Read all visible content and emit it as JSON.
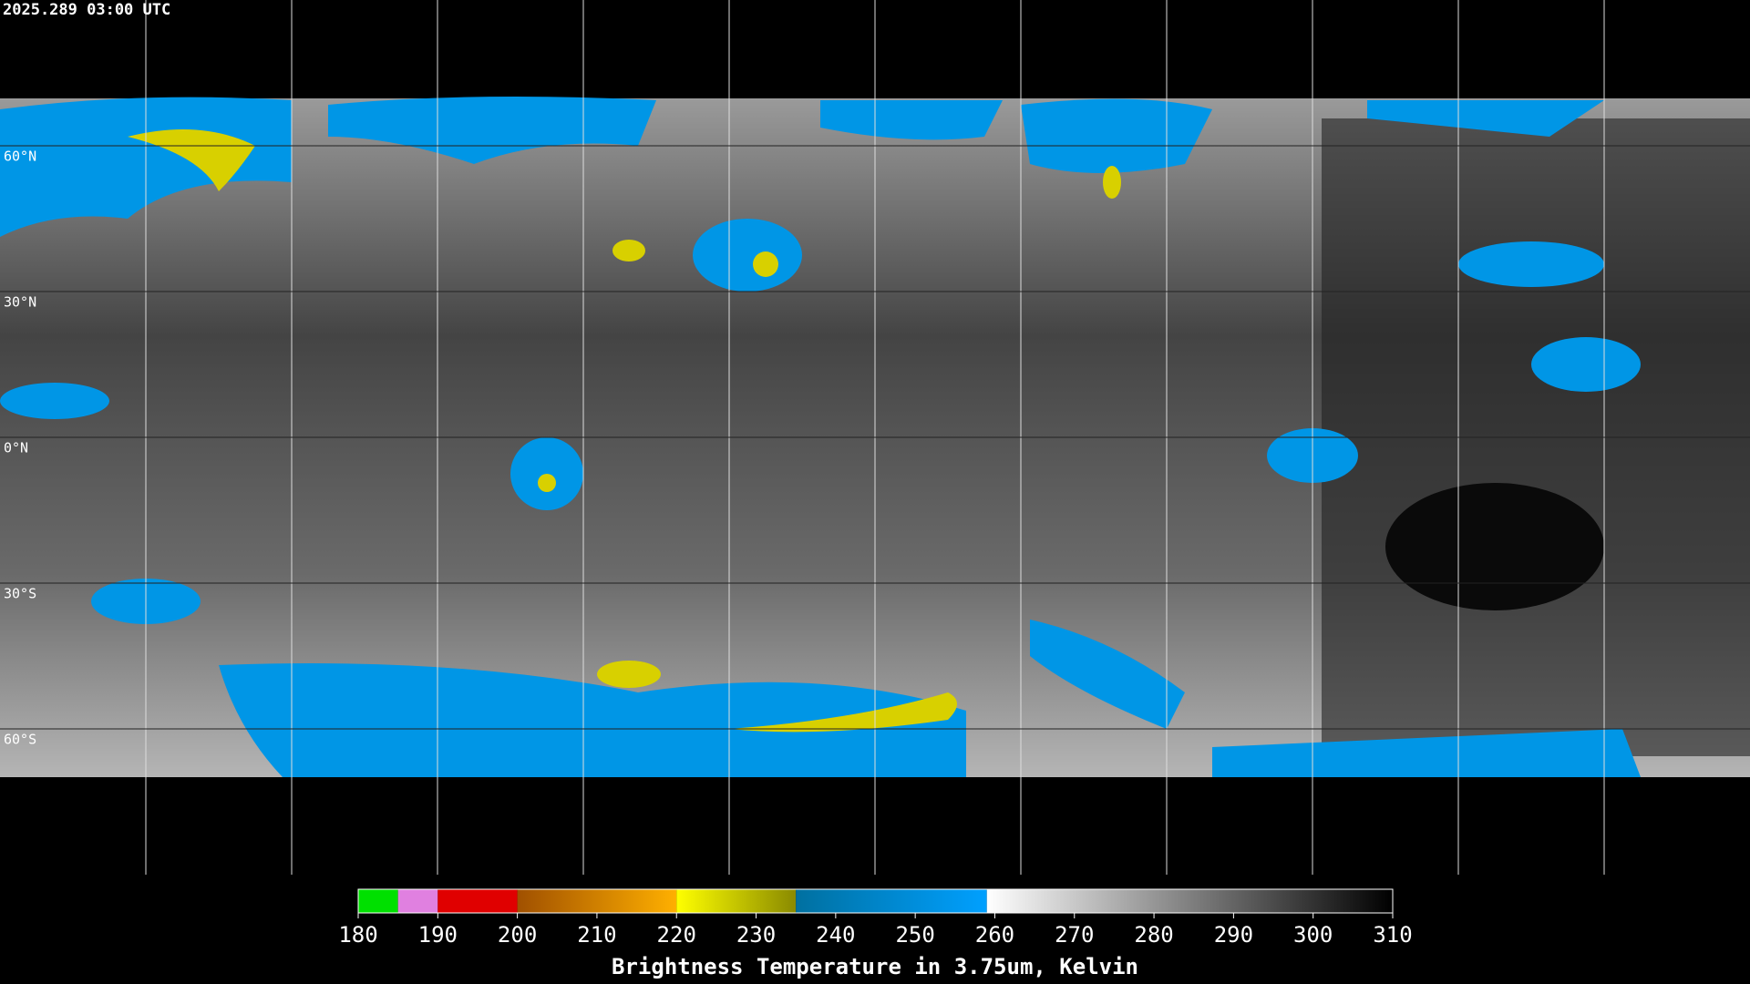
{
  "header": {
    "timestamp": "2025.289 03:00 UTC"
  },
  "map": {
    "lat_lines": [
      {
        "value": 60,
        "label": "60°N"
      },
      {
        "value": 30,
        "label": "30°N"
      },
      {
        "value": 0,
        "label": "0°N"
      },
      {
        "value": -30,
        "label": "30°S"
      },
      {
        "value": -60,
        "label": "60°S"
      }
    ],
    "lon_lines": [
      -150,
      -120,
      -90,
      -60,
      -30,
      0,
      30,
      60,
      90,
      120,
      150
    ]
  },
  "colorbar": {
    "title": "Brightness Temperature in 3.75um, Kelvin",
    "xlim": [
      180,
      310
    ],
    "ticks": [
      180,
      190,
      200,
      210,
      220,
      230,
      240,
      250,
      260,
      270,
      280,
      290,
      300,
      310
    ],
    "segments": [
      {
        "from": 180,
        "to": 185,
        "color_from": "#00e000",
        "color_to": "#00e000"
      },
      {
        "from": 185,
        "to": 190,
        "color_from": "#e080e0",
        "color_to": "#e080e0"
      },
      {
        "from": 190,
        "to": 200,
        "color_from": "#e00000",
        "color_to": "#e00000"
      },
      {
        "from": 200,
        "to": 220,
        "color_from": "#a05000",
        "color_to": "#ffb000"
      },
      {
        "from": 220,
        "to": 235,
        "color_from": "#ffff00",
        "color_to": "#8a8a00"
      },
      {
        "from": 235,
        "to": 259,
        "color_from": "#0070a0",
        "color_to": "#00a0ff"
      },
      {
        "from": 259,
        "to": 310,
        "color_from": "#ffffff",
        "color_to": "#000000"
      }
    ]
  }
}
